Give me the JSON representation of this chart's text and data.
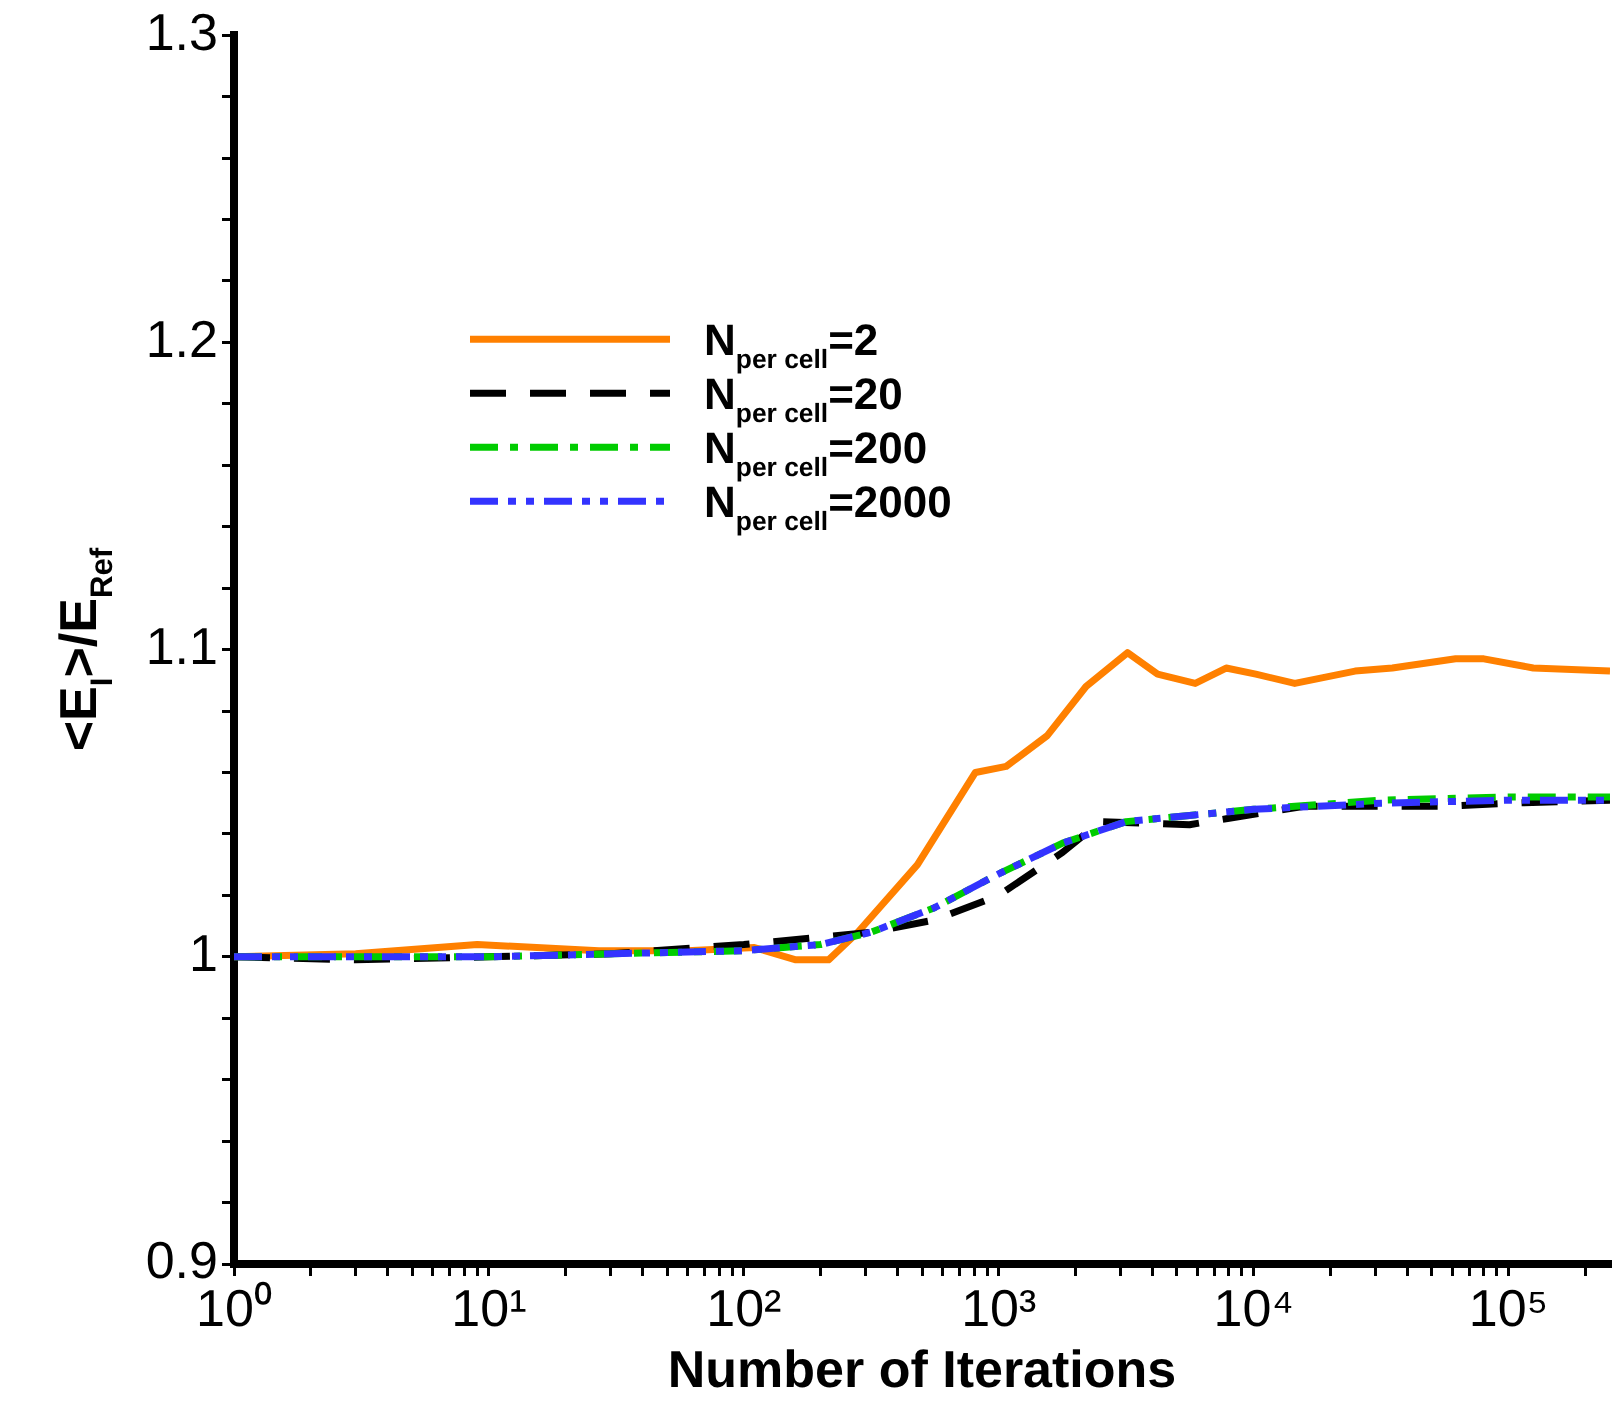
{
  "chart_data": {
    "type": "line",
    "xlabel": "Number of Iterations",
    "ylabel": "<E$_{I}$>/E$_{Ref}$",
    "log": "x",
    "grid": false,
    "legend": "top left",
    "marker": "none",
    "xlim": [
      1,
      250000
    ],
    "xticks": [
      {
        "value": 1,
        "label": "10⁰"
      },
      {
        "value": 2,
        "label": null
      },
      {
        "value": 3,
        "label": null
      },
      {
        "value": 4,
        "label": null
      },
      {
        "value": 5,
        "label": null
      },
      {
        "value": 6,
        "label": null
      },
      {
        "value": 7,
        "label": null
      },
      {
        "value": 8,
        "label": null
      },
      {
        "value": 9,
        "label": null
      },
      {
        "value": 10,
        "label": "10¹"
      },
      {
        "value": 20,
        "label": null
      },
      {
        "value": 30,
        "label": null
      },
      {
        "value": 40,
        "label": null
      },
      {
        "value": 50,
        "label": null
      },
      {
        "value": 60,
        "label": null
      },
      {
        "value": 70,
        "label": null
      },
      {
        "value": 80,
        "label": null
      },
      {
        "value": 90,
        "label": null
      },
      {
        "value": 100,
        "label": "10²"
      },
      {
        "value": 200,
        "label": null
      },
      {
        "value": 300,
        "label": null
      },
      {
        "value": 400,
        "label": null
      },
      {
        "value": 500,
        "label": null
      },
      {
        "value": 600,
        "label": null
      },
      {
        "value": 700,
        "label": null
      },
      {
        "value": 800,
        "label": null
      },
      {
        "value": 900,
        "label": null
      },
      {
        "value": 1000,
        "label": "10³"
      },
      {
        "value": 2000,
        "label": null
      },
      {
        "value": 3000,
        "label": null
      },
      {
        "value": 4000,
        "label": null
      },
      {
        "value": 5000,
        "label": null
      },
      {
        "value": 6000,
        "label": null
      },
      {
        "value": 7000,
        "label": null
      },
      {
        "value": 8000,
        "label": null
      },
      {
        "value": 9000,
        "label": null
      },
      {
        "value": 10000,
        "label": "10⁴"
      },
      {
        "value": 20000,
        "label": null
      },
      {
        "value": 30000,
        "label": null
      },
      {
        "value": 40000,
        "label": null
      },
      {
        "value": 50000,
        "label": null
      },
      {
        "value": 60000,
        "label": null
      },
      {
        "value": 70000,
        "label": null
      },
      {
        "value": 80000,
        "label": null
      },
      {
        "value": 90000,
        "label": null
      },
      {
        "value": 100000,
        "label": "10⁵"
      },
      {
        "value": 200000,
        "label": null
      }
    ],
    "ylim": [
      0.9,
      1.3
    ],
    "yticks": [
      0.9,
      {
        "value": 0.92,
        "label": null
      },
      {
        "value": 0.94,
        "label": null
      },
      {
        "value": 0.96,
        "label": null
      },
      {
        "value": 0.98,
        "label": null
      },
      1,
      {
        "value": 1.02,
        "label": null
      },
      {
        "value": 1.04,
        "label": null
      },
      {
        "value": 1.06,
        "label": null
      },
      {
        "value": 1.08,
        "label": null
      },
      1.1,
      {
        "value": 1.12,
        "label": null
      },
      {
        "value": 1.14,
        "label": null
      },
      {
        "value": 1.16,
        "label": null
      },
      {
        "value": 1.18,
        "label": null
      },
      1.2,
      {
        "value": 1.22,
        "label": null
      },
      {
        "value": 1.24,
        "label": null
      },
      {
        "value": 1.26,
        "label": null
      },
      {
        "value": 1.28,
        "label": null
      },
      1.3
    ],
    "series": [
      {
        "name": "N$_{per cell}$=2",
        "color": "#ff8000",
        "line_style": "solid",
        "x": [
          1,
          3,
          9,
          27,
          60,
          110,
          160,
          215,
          280,
          480,
          810,
          1070,
          1550,
          2200,
          3200,
          4200,
          5900,
          7800,
          10200,
          14500,
          25000,
          35000,
          62000,
          80000,
          125000,
          250000
        ],
        "values": [
          1.0,
          1.001,
          1.004,
          1.002,
          1.002,
          1.003,
          0.999,
          0.999,
          1.008,
          1.03,
          1.06,
          1.062,
          1.072,
          1.088,
          1.099,
          1.092,
          1.089,
          1.094,
          1.092,
          1.089,
          1.093,
          1.094,
          1.097,
          1.097,
          1.094,
          1.093
        ]
      },
      {
        "name": "N$_{per cell}$=20",
        "color": "#000000",
        "line_style": "dashed",
        "x": [
          1,
          3,
          10,
          30,
          100,
          316,
          560,
          1000,
          1780,
          2500,
          5600,
          7900,
          15800,
          56000,
          100000,
          250000
        ],
        "values": [
          1.0,
          0.999,
          1.0,
          1.001,
          1.004,
          1.008,
          1.012,
          1.02,
          1.034,
          1.044,
          1.043,
          1.045,
          1.049,
          1.049,
          1.05,
          1.051
        ]
      },
      {
        "name": "N$_{per cell}$=200",
        "color": "#00cc00",
        "line_style": "dashdot",
        "x": [
          1,
          10,
          100,
          200,
          316,
          560,
          1000,
          1780,
          3160,
          5600,
          10000,
          31600,
          100000,
          250000
        ],
        "values": [
          1.0,
          1.0,
          1.002,
          1.004,
          1.008,
          1.016,
          1.027,
          1.037,
          1.044,
          1.046,
          1.048,
          1.051,
          1.052,
          1.052
        ]
      },
      {
        "name": "N$_{per cell}$=2000",
        "color": "#3333ff",
        "line_style": "dashdotdot",
        "x": [
          1,
          10,
          100,
          200,
          316,
          560,
          1000,
          1780,
          3160,
          5600,
          10000,
          31600,
          100000,
          250000
        ],
        "values": [
          1.0,
          1.0,
          1.002,
          1.004,
          1.008,
          1.016,
          1.027,
          1.037,
          1.044,
          1.046,
          1.048,
          1.05,
          1.051,
          1.051
        ]
      }
    ]
  }
}
